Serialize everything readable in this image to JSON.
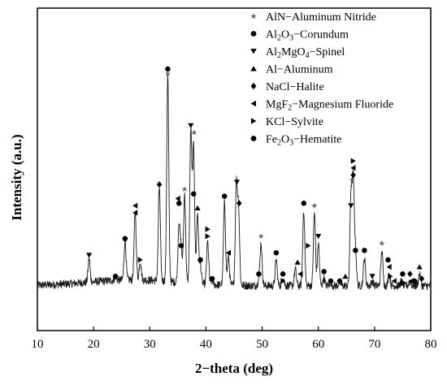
{
  "chart_data": {
    "type": "line",
    "xlabel": "2−theta (deg)",
    "ylabel": "Intensity (a.u.)",
    "xlim": [
      10,
      80
    ],
    "xticks": [
      10,
      20,
      30,
      40,
      50,
      60,
      70,
      80
    ],
    "y_ticks_shown": false,
    "grid": false,
    "legend_position": "top-right",
    "line_color": "#1a1a1a",
    "pattern": {
      "baseline": 8,
      "peaks": [
        {
          "x": 19.2,
          "h": 10
        },
        {
          "x": 23.9,
          "h": 1.5
        },
        {
          "x": 25.6,
          "h": 17
        },
        {
          "x": 27.4,
          "h": 29
        },
        {
          "x": 28.3,
          "h": 8
        },
        {
          "x": 31.7,
          "h": 40
        },
        {
          "x": 33.2,
          "h": 88
        },
        {
          "x": 35.2,
          "h": 25
        },
        {
          "x": 35.6,
          "h": 14
        },
        {
          "x": 36.2,
          "h": 38
        },
        {
          "x": 37.3,
          "h": 65
        },
        {
          "x": 37.8,
          "h": 58
        },
        {
          "x": 38.5,
          "h": 30
        },
        {
          "x": 39.0,
          "h": 8
        },
        {
          "x": 40.3,
          "h": 18
        },
        {
          "x": 41.1,
          "h": 2
        },
        {
          "x": 43.3,
          "h": 35
        },
        {
          "x": 44.0,
          "h": 12
        },
        {
          "x": 45.4,
          "h": 42
        },
        {
          "x": 45.8,
          "h": 32
        },
        {
          "x": 49.4,
          "h": 2
        },
        {
          "x": 49.8,
          "h": 18
        },
        {
          "x": 52.5,
          "h": 11
        },
        {
          "x": 53.7,
          "h": 4
        },
        {
          "x": 55.9,
          "h": 7
        },
        {
          "x": 57.4,
          "h": 32
        },
        {
          "x": 59.3,
          "h": 31
        },
        {
          "x": 60.0,
          "h": 18
        },
        {
          "x": 61.0,
          "h": 3
        },
        {
          "x": 62.2,
          "h": 1.5
        },
        {
          "x": 63.8,
          "h": 1.5
        },
        {
          "x": 65.8,
          "h": 38
        },
        {
          "x": 66.2,
          "h": 43
        },
        {
          "x": 66.6,
          "h": 15
        },
        {
          "x": 68.2,
          "h": 12
        },
        {
          "x": 69.6,
          "h": 2
        },
        {
          "x": 71.3,
          "h": 15
        },
        {
          "x": 72.6,
          "h": 5
        },
        {
          "x": 74.8,
          "h": 2
        },
        {
          "x": 76.3,
          "h": 2
        },
        {
          "x": 78.0,
          "h": 5
        }
      ]
    },
    "markers": [
      {
        "symbol": "triangle-down",
        "x": 19.2,
        "y": 21
      },
      {
        "symbol": "circle",
        "x": 23.9,
        "y": 12
      },
      {
        "symbol": "circle",
        "x": 25.6,
        "y": 28
      },
      {
        "symbol": "triangle-left",
        "x": 27.4,
        "y": 42
      },
      {
        "symbol": "triangle-left",
        "x": 27.4,
        "y": 39
      },
      {
        "symbol": "triangle-right",
        "x": 28.3,
        "y": 19
      },
      {
        "symbol": "diamond",
        "x": 31.7,
        "y": 51
      },
      {
        "symbol": "circle",
        "x": 33.2,
        "y": 100
      },
      {
        "symbol": "star",
        "x": 33.2,
        "y": 98
      },
      {
        "symbol": "triangle-left",
        "x": 35.0,
        "y": 45
      },
      {
        "symbol": "circle",
        "x": 35.2,
        "y": 43
      },
      {
        "symbol": "circle",
        "x": 35.6,
        "y": 25
      },
      {
        "symbol": "star",
        "x": 36.2,
        "y": 49
      },
      {
        "symbol": "triangle-down",
        "x": 37.3,
        "y": 76
      },
      {
        "symbol": "star",
        "x": 37.9,
        "y": 73
      },
      {
        "symbol": "circle",
        "x": 37.8,
        "y": 47
      },
      {
        "symbol": "triangle-up",
        "x": 38.5,
        "y": 41
      },
      {
        "symbol": "circle",
        "x": 39.0,
        "y": 19
      },
      {
        "symbol": "triangle-right",
        "x": 40.3,
        "y": 32
      },
      {
        "symbol": "triangle-right",
        "x": 40.3,
        "y": 29
      },
      {
        "symbol": "circle",
        "x": 41.1,
        "y": 11
      },
      {
        "symbol": "circle",
        "x": 43.3,
        "y": 46
      },
      {
        "symbol": "triangle-left",
        "x": 44.0,
        "y": 22
      },
      {
        "symbol": "triangle-down",
        "x": 45.5,
        "y": 52
      },
      {
        "symbol": "diamond",
        "x": 45.9,
        "y": 43
      },
      {
        "symbol": "circle",
        "x": 49.4,
        "y": 13
      },
      {
        "symbol": "star",
        "x": 49.8,
        "y": 29
      },
      {
        "symbol": "circle",
        "x": 52.5,
        "y": 22
      },
      {
        "symbol": "circle",
        "x": 53.7,
        "y": 13
      },
      {
        "symbol": "triangle-right",
        "x": 53.7,
        "y": 10
      },
      {
        "symbol": "triangle-up",
        "x": 56.3,
        "y": 18
      },
      {
        "symbol": "triangle-left",
        "x": 56.8,
        "y": 13
      },
      {
        "symbol": "circle",
        "x": 57.4,
        "y": 43
      },
      {
        "symbol": "triangle-right",
        "x": 58.2,
        "y": 25
      },
      {
        "symbol": "star",
        "x": 59.3,
        "y": 42
      },
      {
        "symbol": "triangle-down",
        "x": 60.0,
        "y": 29
      },
      {
        "symbol": "circle",
        "x": 61.0,
        "y": 14
      },
      {
        "symbol": "circle",
        "x": 62.2,
        "y": 10
      },
      {
        "symbol": "circle",
        "x": 63.8,
        "y": 10
      },
      {
        "symbol": "triangle-up",
        "x": 64.8,
        "y": 12
      },
      {
        "symbol": "triangle-right",
        "x": 66.2,
        "y": 61
      },
      {
        "symbol": "triangle-left",
        "x": 66.2,
        "y": 58
      },
      {
        "symbol": "diamond",
        "x": 66.2,
        "y": 55
      },
      {
        "symbol": "star",
        "x": 66.0,
        "y": 53
      },
      {
        "symbol": "triangle-down",
        "x": 65.8,
        "y": 42
      },
      {
        "symbol": "circle",
        "x": 66.6,
        "y": 23
      },
      {
        "symbol": "circle",
        "x": 68.2,
        "y": 23
      },
      {
        "symbol": "triangle-down",
        "x": 69.6,
        "y": 12
      },
      {
        "symbol": "star",
        "x": 71.3,
        "y": 26
      },
      {
        "symbol": "circle",
        "x": 72.4,
        "y": 19
      },
      {
        "symbol": "triangle-left",
        "x": 72.6,
        "y": 16
      },
      {
        "symbol": "triangle-right",
        "x": 72.8,
        "y": 12
      },
      {
        "symbol": "triangle-left",
        "x": 73.5,
        "y": 10
      },
      {
        "symbol": "diamond",
        "x": 74.8,
        "y": 9
      },
      {
        "symbol": "circle",
        "x": 75.0,
        "y": 13
      },
      {
        "symbol": "diamond",
        "x": 76.3,
        "y": 13
      },
      {
        "symbol": "triangle-left",
        "x": 76.5,
        "y": 10
      },
      {
        "symbol": "circle",
        "x": 77.1,
        "y": 10
      },
      {
        "symbol": "triangle-up",
        "x": 78.0,
        "y": 16
      },
      {
        "symbol": "diamond",
        "x": 78.4,
        "y": 11
      }
    ],
    "legend": [
      {
        "symbol": "star",
        "parts": [
          [
            "AlN−Aluminum Nitride",
            ""
          ]
        ]
      },
      {
        "symbol": "circle",
        "parts": [
          [
            "Al",
            ""
          ],
          [
            "2",
            "sub"
          ],
          [
            "O",
            ""
          ],
          [
            "3",
            "sub"
          ],
          [
            "−Corundum",
            ""
          ]
        ]
      },
      {
        "symbol": "triangle-down",
        "parts": [
          [
            "Al",
            ""
          ],
          [
            "2",
            "sub"
          ],
          [
            "MgO",
            ""
          ],
          [
            "4",
            "sub"
          ],
          [
            "−Spinel",
            ""
          ]
        ]
      },
      {
        "symbol": "triangle-up",
        "parts": [
          [
            "Al−Aluminum",
            ""
          ]
        ]
      },
      {
        "symbol": "diamond",
        "parts": [
          [
            "NaCl−Halite",
            ""
          ]
        ]
      },
      {
        "symbol": "triangle-left",
        "parts": [
          [
            "MgF",
            ""
          ],
          [
            "2",
            "sub"
          ],
          [
            "−Magnesium Fluoride",
            ""
          ]
        ]
      },
      {
        "symbol": "triangle-right",
        "parts": [
          [
            "KCl−Sylvite",
            ""
          ]
        ]
      },
      {
        "symbol": "circle",
        "parts": [
          [
            "Fe",
            ""
          ],
          [
            "2",
            "sub"
          ],
          [
            "O",
            ""
          ],
          [
            "3",
            "sub"
          ],
          [
            "−Hematite",
            ""
          ]
        ]
      }
    ]
  }
}
